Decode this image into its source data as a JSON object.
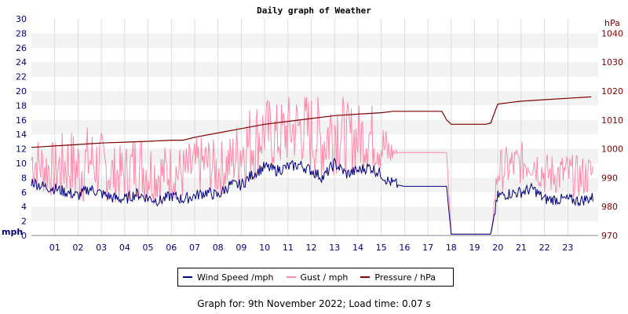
{
  "chart_data": {
    "type": "line",
    "title": "Daily graph of Weather",
    "left_axis": {
      "unit": "mph",
      "ylim": [
        0,
        30
      ],
      "ticks": [
        0,
        2,
        4,
        6,
        8,
        10,
        12,
        14,
        16,
        18,
        20,
        22,
        24,
        26,
        28,
        30
      ]
    },
    "right_axis": {
      "unit": "hPa",
      "ylim": [
        970,
        1045
      ],
      "ticks": [
        970,
        980,
        990,
        1000,
        1010,
        1020,
        1030,
        1040
      ]
    },
    "x_axis": {
      "range_hours": [
        0,
        24.3
      ],
      "tick_labels": [
        "01",
        "02",
        "03",
        "04",
        "05",
        "06",
        "07",
        "08",
        "09",
        "10",
        "11",
        "12",
        "13",
        "14",
        "15",
        "16",
        "17",
        "18",
        "19",
        "20",
        "21",
        "22",
        "23"
      ]
    },
    "grid": true,
    "legend_placement": "bottom-center",
    "series": [
      {
        "name": "Wind Speed /mph",
        "axis": "left",
        "color": "#000080",
        "x": [
          0,
          0.5,
          1,
          1.5,
          2,
          2.5,
          3,
          3.5,
          4,
          4.5,
          5,
          5.5,
          6,
          6.5,
          7,
          7.5,
          8,
          8.5,
          9,
          9.5,
          10,
          10.5,
          11,
          11.5,
          12,
          12.5,
          13,
          13.5,
          14,
          14.5,
          15,
          15.3,
          15.7,
          16,
          16.5,
          17,
          17.5,
          17.8,
          18,
          18.5,
          19,
          19.5,
          19.7,
          20,
          20.5,
          21,
          21.5,
          22,
          22.5,
          23,
          23.5,
          24
        ],
        "values": [
          7.5,
          6.8,
          6.5,
          6.0,
          5.5,
          6.5,
          5.8,
          5.2,
          5.0,
          5.8,
          5.2,
          4.8,
          5.5,
          5.0,
          5.5,
          6.0,
          5.5,
          7.0,
          7.0,
          8.5,
          9.5,
          9.0,
          9.5,
          9.8,
          9.0,
          8.0,
          10.0,
          8.5,
          9.0,
          9.5,
          8.5,
          7.5,
          7.0,
          6.8,
          6.8,
          6.8,
          6.8,
          6.8,
          0.2,
          0.2,
          0.2,
          0.2,
          0.2,
          5.5,
          5.8,
          6.0,
          6.5,
          5.0,
          5.0,
          5.0,
          4.8,
          5.2
        ]
      },
      {
        "name": "Gust / mph",
        "axis": "left",
        "color": "#ff88aa",
        "x": [
          0,
          0.5,
          1,
          1.5,
          2,
          2.5,
          3,
          3.5,
          4,
          4.5,
          5,
          5.5,
          6,
          6.5,
          7,
          7.5,
          8,
          8.5,
          9,
          9.5,
          10,
          10.5,
          11,
          11.5,
          12,
          12.5,
          13,
          13.5,
          14,
          14.5,
          15,
          15.3,
          15.7,
          16,
          16.5,
          17,
          17.5,
          17.8,
          18,
          18.5,
          19,
          19.5,
          19.7,
          20,
          20.5,
          21,
          21.5,
          22,
          22.5,
          23,
          23.5,
          24
        ],
        "values": [
          10.5,
          9.5,
          9.0,
          10.0,
          9.0,
          10.5,
          9.5,
          8.5,
          8.5,
          10.0,
          9.0,
          8.5,
          9.0,
          8.5,
          9.5,
          10.0,
          9.0,
          10.0,
          12.0,
          13.0,
          14.5,
          13.5,
          14.5,
          15.0,
          14.0,
          13.0,
          15.5,
          13.5,
          13.5,
          14.0,
          12.5,
          11.5,
          11.5,
          11.5,
          11.5,
          11.5,
          11.5,
          11.5,
          0.2,
          0.2,
          0.2,
          0.2,
          0.2,
          9.0,
          9.5,
          10.0,
          10.5,
          8.5,
          8.5,
          8.5,
          8.0,
          8.5
        ],
        "spread": [
          4,
          4,
          4,
          5,
          6,
          5,
          5,
          4,
          4,
          5,
          5,
          4,
          4,
          4,
          4,
          4,
          4,
          4,
          5,
          6,
          5,
          5,
          5,
          5,
          6,
          6,
          7,
          5,
          5,
          5,
          4,
          3,
          0,
          0,
          0,
          0,
          0,
          0,
          0,
          0,
          0,
          0,
          0,
          3,
          3,
          3,
          3,
          3,
          3,
          3,
          3,
          3
        ]
      },
      {
        "name": "Pressure / hPa",
        "axis": "right",
        "color": "#800000",
        "x": [
          0,
          1,
          2,
          3,
          4,
          5,
          6,
          6.5,
          7,
          8,
          9,
          10,
          11,
          12,
          13,
          14,
          15,
          15.5,
          16,
          17,
          17.6,
          17.8,
          18,
          18.5,
          19,
          19.5,
          19.7,
          19.9,
          20,
          20.5,
          21,
          22,
          23,
          24
        ],
        "values": [
          1000.5,
          1001,
          1001.5,
          1002,
          1002.3,
          1002.6,
          1003,
          1003,
          1004,
          1005.5,
          1007,
          1008.5,
          1009.5,
          1010.5,
          1011.5,
          1012,
          1012.5,
          1013,
          1013,
          1013,
          1013,
          1010,
          1008.5,
          1008.5,
          1008.5,
          1008.5,
          1009,
          1013.5,
          1015.5,
          1016,
          1016.5,
          1017,
          1017.5,
          1018
        ]
      }
    ]
  },
  "legend": {
    "items": [
      {
        "label": "Wind Speed /mph",
        "color": "#000080"
      },
      {
        "label": "Gust / mph",
        "color": "#ff88aa"
      },
      {
        "label": "Pressure / hPa",
        "color": "#800000"
      }
    ]
  },
  "footer": {
    "text": "Graph for: 9th November 2022; Load time: 0.07 s"
  }
}
